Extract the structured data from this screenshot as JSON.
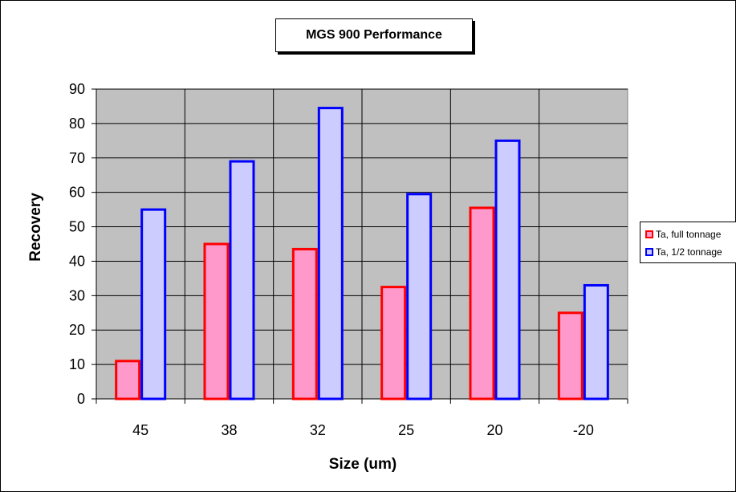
{
  "chart_data": {
    "type": "bar",
    "title": "MGS 900 Performance",
    "xlabel": "Size (um)",
    "ylabel": "Recovery",
    "categories": [
      "45",
      "38",
      "32",
      "25",
      "20",
      "-20"
    ],
    "series": [
      {
        "name": "Ta, full tonnage",
        "values": [
          11,
          45,
          43.5,
          32.5,
          55.5,
          25
        ],
        "fill": "#ff99cc",
        "stroke": "#ff0000"
      },
      {
        "name": "Ta, 1/2 tonnage",
        "values": [
          55,
          69,
          84.5,
          59.5,
          75,
          33
        ],
        "fill": "#ccccff",
        "stroke": "#0000ff"
      }
    ],
    "ylim": [
      0,
      90
    ],
    "yticks": [
      0,
      10,
      20,
      30,
      40,
      50,
      60,
      70,
      80,
      90
    ],
    "grid": true,
    "plot_background": "#c0c0c0",
    "legend_position": "right"
  }
}
